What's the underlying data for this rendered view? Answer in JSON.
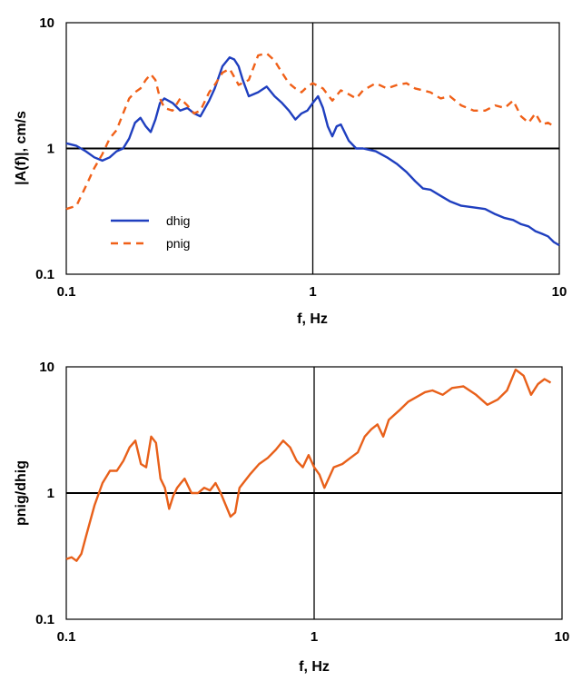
{
  "chart_data": [
    {
      "type": "line",
      "xscale": "log",
      "yscale": "log",
      "xlabel": "f, Hz",
      "ylabel": "|A(f)|, cm/s",
      "xlim": [
        0.1,
        10
      ],
      "ylim": [
        0.1,
        10
      ],
      "x_ticks": [
        "0.1",
        "1",
        "10"
      ],
      "y_ticks": [
        "0.1",
        "1",
        "10"
      ],
      "reference_lines": [
        {
          "axis": "x",
          "value": 1
        },
        {
          "axis": "y",
          "value": 1
        }
      ],
      "legend": {
        "placement": "lower-left",
        "entries": [
          "dhig",
          "pnig"
        ]
      },
      "series": [
        {
          "name": "dhig",
          "color": "#1f3fbf",
          "dash": "solid",
          "x": [
            0.1,
            0.11,
            0.12,
            0.13,
            0.14,
            0.15,
            0.16,
            0.17,
            0.18,
            0.19,
            0.2,
            0.21,
            0.22,
            0.23,
            0.24,
            0.25,
            0.27,
            0.29,
            0.31,
            0.33,
            0.35,
            0.38,
            0.4,
            0.43,
            0.46,
            0.48,
            0.5,
            0.52,
            0.55,
            0.6,
            0.65,
            0.7,
            0.75,
            0.8,
            0.85,
            0.9,
            0.95,
            1.0,
            1.05,
            1.1,
            1.15,
            1.2,
            1.25,
            1.3,
            1.4,
            1.5,
            1.6,
            1.8,
            2.0,
            2.2,
            2.4,
            2.6,
            2.8,
            3.0,
            3.3,
            3.6,
            4.0,
            4.5,
            5.0,
            5.5,
            6.0,
            6.5,
            7.0,
            7.5,
            8.0,
            8.5,
            9.0,
            9.5,
            10.0
          ],
          "y": [
            1.1,
            1.05,
            0.95,
            0.85,
            0.8,
            0.85,
            0.95,
            1.0,
            1.2,
            1.6,
            1.75,
            1.5,
            1.35,
            1.7,
            2.3,
            2.5,
            2.3,
            2.0,
            2.1,
            1.9,
            1.8,
            2.4,
            3.0,
            4.5,
            5.3,
            5.1,
            4.5,
            3.5,
            2.6,
            2.8,
            3.1,
            2.6,
            2.3,
            2.0,
            1.7,
            1.9,
            2.0,
            2.3,
            2.6,
            2.1,
            1.5,
            1.25,
            1.5,
            1.55,
            1.15,
            1.0,
            1.0,
            0.95,
            0.85,
            0.75,
            0.65,
            0.55,
            0.48,
            0.47,
            0.42,
            0.38,
            0.35,
            0.34,
            0.33,
            0.3,
            0.28,
            0.27,
            0.25,
            0.24,
            0.22,
            0.21,
            0.2,
            0.18,
            0.17
          ]
        },
        {
          "name": "pnig",
          "color": "#f06018",
          "dash": "dashed",
          "x": [
            0.1,
            0.11,
            0.12,
            0.13,
            0.14,
            0.15,
            0.16,
            0.17,
            0.18,
            0.19,
            0.2,
            0.21,
            0.22,
            0.23,
            0.24,
            0.25,
            0.27,
            0.29,
            0.31,
            0.33,
            0.35,
            0.38,
            0.4,
            0.43,
            0.46,
            0.48,
            0.5,
            0.55,
            0.6,
            0.65,
            0.7,
            0.75,
            0.8,
            0.85,
            0.9,
            0.95,
            1.0,
            1.1,
            1.2,
            1.3,
            1.4,
            1.5,
            1.6,
            1.8,
            2.0,
            2.2,
            2.4,
            2.6,
            2.8,
            3.0,
            3.3,
            3.6,
            4.0,
            4.5,
            5.0,
            5.5,
            6.0,
            6.5,
            7.0,
            7.5,
            8.0,
            8.5,
            9.0,
            9.5
          ],
          "y": [
            0.33,
            0.35,
            0.5,
            0.7,
            0.9,
            1.2,
            1.4,
            1.9,
            2.5,
            2.8,
            3.0,
            3.5,
            3.9,
            3.5,
            2.5,
            2.1,
            2.0,
            2.5,
            2.2,
            1.9,
            2.0,
            2.8,
            3.2,
            4.0,
            4.3,
            3.7,
            3.2,
            3.5,
            5.5,
            5.7,
            5.0,
            4.0,
            3.3,
            3.0,
            2.8,
            3.1,
            3.3,
            3.0,
            2.4,
            2.9,
            2.7,
            2.5,
            2.9,
            3.3,
            3.0,
            3.2,
            3.3,
            3.0,
            2.9,
            2.8,
            2.5,
            2.6,
            2.2,
            2.0,
            2.0,
            2.2,
            2.1,
            2.4,
            1.8,
            1.6,
            1.9,
            1.55,
            1.6,
            1.5
          ]
        }
      ]
    },
    {
      "type": "line",
      "xscale": "log",
      "yscale": "log",
      "xlabel": "f, Hz",
      "ylabel": "pnig/dhig",
      "xlim": [
        0.1,
        10
      ],
      "ylim": [
        0.1,
        10
      ],
      "x_ticks": [
        "0.1",
        "1",
        "10"
      ],
      "y_ticks": [
        "0.1",
        "1",
        "10"
      ],
      "reference_lines": [
        {
          "axis": "x",
          "value": 1
        },
        {
          "axis": "y",
          "value": 1
        }
      ],
      "series": [
        {
          "color": "#e8601a",
          "dash": "solid",
          "x": [
            0.1,
            0.105,
            0.11,
            0.115,
            0.12,
            0.13,
            0.14,
            0.15,
            0.16,
            0.17,
            0.18,
            0.19,
            0.2,
            0.21,
            0.22,
            0.23,
            0.24,
            0.25,
            0.26,
            0.27,
            0.28,
            0.29,
            0.3,
            0.32,
            0.34,
            0.36,
            0.38,
            0.4,
            0.42,
            0.44,
            0.46,
            0.48,
            0.5,
            0.55,
            0.6,
            0.65,
            0.7,
            0.75,
            0.8,
            0.85,
            0.9,
            0.95,
            1.0,
            1.05,
            1.1,
            1.2,
            1.3,
            1.4,
            1.5,
            1.6,
            1.7,
            1.8,
            1.9,
            2.0,
            2.2,
            2.4,
            2.6,
            2.8,
            3.0,
            3.3,
            3.6,
            4.0,
            4.5,
            5.0,
            5.5,
            6.0,
            6.5,
            7.0,
            7.5,
            8.0,
            8.5,
            9.0
          ],
          "y": [
            0.3,
            0.31,
            0.29,
            0.33,
            0.45,
            0.8,
            1.2,
            1.5,
            1.5,
            1.8,
            2.3,
            2.6,
            1.7,
            1.6,
            2.8,
            2.5,
            1.3,
            1.1,
            0.75,
            0.95,
            1.1,
            1.2,
            1.3,
            1.0,
            1.0,
            1.1,
            1.05,
            1.2,
            1.0,
            0.8,
            0.65,
            0.7,
            1.1,
            1.4,
            1.7,
            1.9,
            2.2,
            2.6,
            2.3,
            1.8,
            1.6,
            2.0,
            1.6,
            1.4,
            1.1,
            1.6,
            1.7,
            1.9,
            2.1,
            2.8,
            3.2,
            3.5,
            2.8,
            3.8,
            4.5,
            5.3,
            5.8,
            6.3,
            6.5,
            6.0,
            6.8,
            7.0,
            6.0,
            5.0,
            5.5,
            6.5,
            9.5,
            8.5,
            6.0,
            7.3,
            8.0,
            7.5
          ]
        }
      ]
    }
  ]
}
